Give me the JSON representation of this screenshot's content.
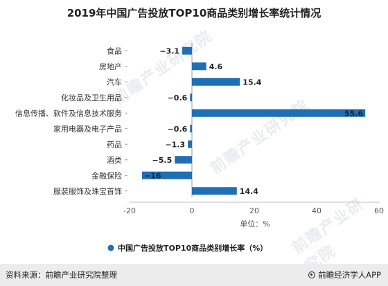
{
  "title": "2019年中国广告投放TOP10商品类别增长率统计情况",
  "chart_data": {
    "type": "bar",
    "orientation": "horizontal",
    "categories": [
      "食品",
      "房地产",
      "汽车",
      "化妆品及卫生用品",
      "信息传播、软件及信息技术服务",
      "家用电器及电子产品",
      "药品",
      "酒类",
      "金融保险",
      "服装服饰及珠宝首饰"
    ],
    "series": [
      {
        "name": "中国广告投放TOP10商品类别增长率（%）",
        "values": [
          -3.1,
          4.6,
          15.4,
          -0.6,
          55.6,
          -0.6,
          -1.3,
          -5.5,
          -16,
          14.4
        ],
        "labels": [
          "−3.1",
          "4.6",
          "15.4",
          "−0.6",
          "55.6",
          "−0.6",
          "−1.3",
          "−5.5",
          "−16",
          "14.4"
        ]
      }
    ],
    "xlim": [
      -20,
      60
    ],
    "xticks": [
      "-20",
      "0",
      "20",
      "40",
      "60"
    ],
    "unit_label": "单位：%",
    "grid": false,
    "legend_position": "bottom",
    "color": "#1f6fb5"
  },
  "watermark": "前瞻产业研究院",
  "footer": {
    "source": "资料来源：前瞻产业研究院整理",
    "brand": "前瞻经济学人APP"
  }
}
